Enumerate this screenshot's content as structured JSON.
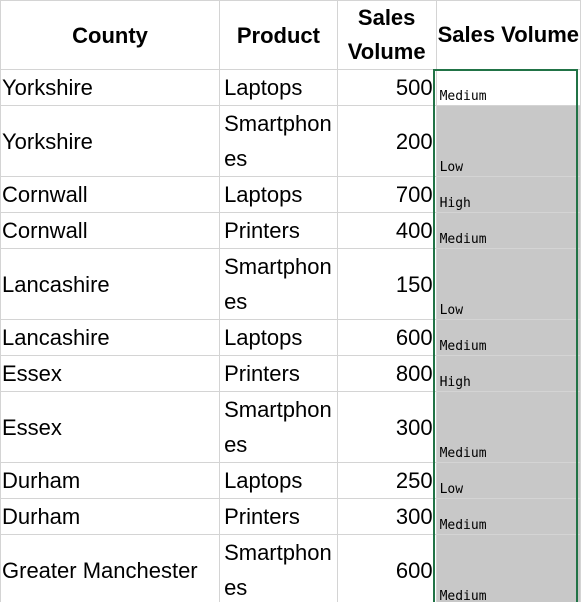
{
  "headers": [
    "County",
    "Product",
    "Sales Volume",
    "Sales Volume"
  ],
  "rows": [
    {
      "county": "Yorkshire",
      "product": "Laptops",
      "volume": "500",
      "category": "Medium"
    },
    {
      "county": "Yorkshire",
      "product": "Smartphones",
      "volume": "200",
      "category": "Low"
    },
    {
      "county": "Cornwall",
      "product": "Laptops",
      "volume": "700",
      "category": "High"
    },
    {
      "county": "Cornwall",
      "product": "Printers",
      "volume": "400",
      "category": "Medium"
    },
    {
      "county": "Lancashire",
      "product": "Smartphones",
      "volume": "150",
      "category": "Low"
    },
    {
      "county": "Lancashire",
      "product": "Laptops",
      "volume": "600",
      "category": "Medium"
    },
    {
      "county": "Essex",
      "product": "Printers",
      "volume": "800",
      "category": "High"
    },
    {
      "county": "Essex",
      "product": "Smartphones",
      "volume": "300",
      "category": "Medium"
    },
    {
      "county": "Durham",
      "product": "Laptops",
      "volume": "250",
      "category": "Low"
    },
    {
      "county": "Durham",
      "product": "Printers",
      "volume": "300",
      "category": "Medium"
    },
    {
      "county": "Greater Manchester",
      "product": "Smartphones",
      "volume": "600",
      "category": "Medium"
    }
  ],
  "colors": {
    "selection": "#217346",
    "selected_fill": "#c8c8c8",
    "grid": "#d4d4d4"
  }
}
